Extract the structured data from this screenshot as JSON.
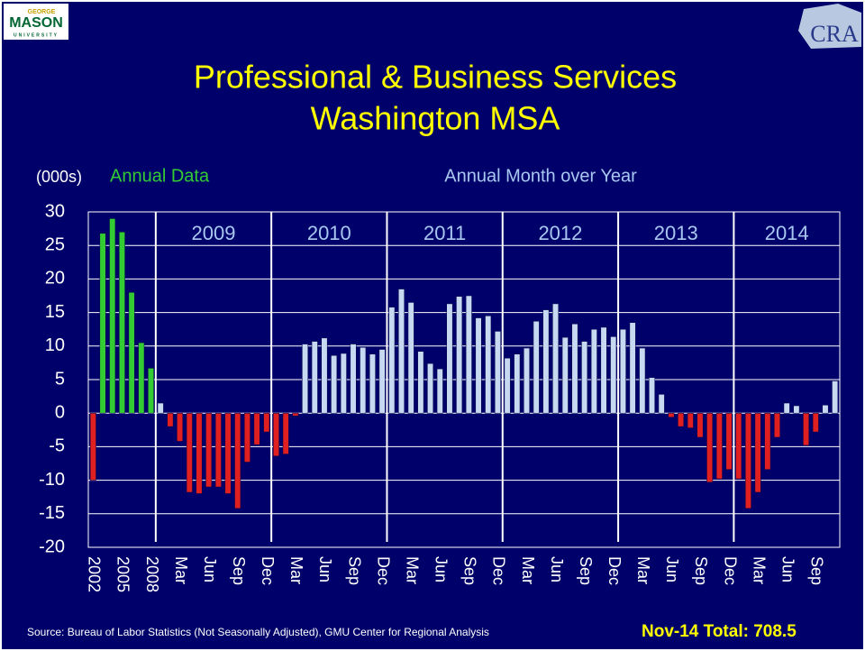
{
  "chart_data": {
    "type": "bar",
    "title": [
      "Professional & Business Services",
      "Washington MSA"
    ],
    "y_unit": "(000s)",
    "logos": {
      "left": [
        "GEORGE",
        "MASON",
        "UNIVERSITY"
      ],
      "right": "CRA"
    },
    "year_labels": [
      "2009",
      "2010",
      "2011",
      "2012",
      "2013",
      "2014"
    ],
    "categories": [
      "2002",
      null,
      null,
      "2005",
      null,
      null,
      "2008",
      null,
      null,
      "Mar",
      null,
      null,
      "Jun",
      null,
      null,
      "Sep",
      null,
      null,
      "Dec",
      null,
      null,
      "Mar",
      null,
      null,
      "Jun",
      null,
      null,
      "Sep",
      null,
      null,
      "Dec",
      null,
      null,
      "Mar",
      null,
      null,
      "Jun",
      null,
      null,
      "Sep",
      null,
      null,
      "Dec",
      null,
      null,
      "Mar",
      null,
      null,
      "Jun",
      null,
      null,
      "Sep",
      null,
      null,
      "Dec",
      null,
      null,
      "Mar",
      null,
      null,
      "Jun",
      null,
      null,
      "Sep",
      null,
      null,
      "Dec",
      null,
      null,
      "Mar",
      null,
      null,
      "Jun",
      null,
      null,
      "Sep",
      null,
      null
    ],
    "series": [
      {
        "name": "Annual Data",
        "color": "#33cc33",
        "negative_color": "#e02020",
        "values": [
          -10,
          26.8,
          29,
          27,
          18,
          10.5,
          6.7,
          null,
          null,
          null,
          null,
          null,
          null,
          null,
          null,
          null,
          null,
          null,
          null,
          null,
          null,
          null,
          null,
          null,
          null,
          null,
          null,
          null,
          null,
          null,
          null,
          null,
          null,
          null,
          null,
          null,
          null,
          null,
          null,
          null,
          null,
          null,
          null,
          null,
          null,
          null,
          null,
          null,
          null,
          null,
          null,
          null,
          null,
          null,
          null,
          null,
          null,
          null,
          null,
          null,
          null,
          null,
          null,
          null,
          null,
          null,
          null,
          null,
          null,
          null,
          null,
          null,
          null,
          null,
          null,
          null,
          null,
          null
        ]
      },
      {
        "name": "Annual Month over Year",
        "color": "#c6d9f1",
        "negative_color": "#e02020",
        "values": [
          null,
          null,
          null,
          null,
          null,
          null,
          null,
          1.5,
          -2,
          -4.2,
          -11.8,
          -12,
          -11,
          -11,
          -12,
          -14.2,
          -7.3,
          -4.7,
          -2.8,
          -6.4,
          -6.1,
          -0.4,
          10.3,
          10.7,
          11.2,
          8.6,
          8.9,
          10.3,
          9.8,
          8.8,
          9.5,
          15.8,
          18.5,
          16.5,
          9.2,
          7.4,
          6.6,
          16.3,
          17.4,
          17.5,
          14.2,
          14.5,
          12.2,
          8.2,
          8.8,
          9.7,
          13.7,
          15.4,
          16.3,
          11.3,
          13.3,
          10.7,
          12.5,
          12.8,
          11.4,
          12.5,
          13.5,
          9.7,
          5.3,
          2.8,
          -0.6,
          -2,
          -2.2,
          -3.6,
          -10.3,
          -9.8,
          -8.4,
          -9.8,
          -14.2,
          -11.8,
          -8.4,
          -3.6,
          1.5,
          1.1,
          -4.8,
          -2.8,
          1.2,
          4.8
        ]
      }
    ],
    "ylim": [
      -20,
      30
    ],
    "yticks": [
      -20,
      -15,
      -10,
      -5,
      0,
      5,
      10,
      15,
      20,
      25,
      30
    ],
    "grid": true,
    "source": "Source: Bureau of Labor Statistics (Not Seasonally Adjusted), GMU Center for Regional Analysis",
    "annotation": "Nov-14 Total: 708.5"
  }
}
